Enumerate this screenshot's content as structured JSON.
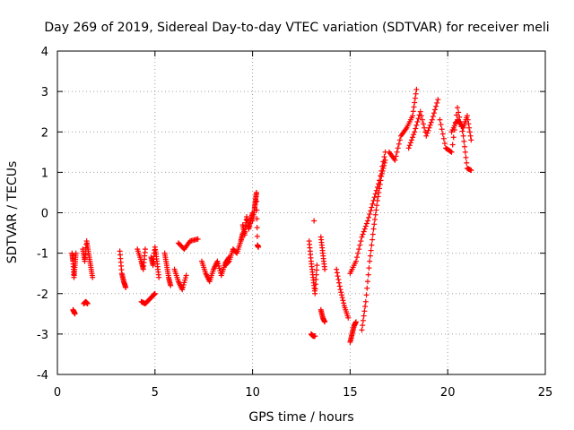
{
  "chart_data": {
    "type": "scatter",
    "title": "Day 269 of 2019, Sidereal Day-to-day VTEC variation (SDTVAR) for receiver meli",
    "xlabel": "GPS time / hours",
    "ylabel": "SDTVAR / TECUs",
    "xlim": [
      0,
      25
    ],
    "ylim": [
      -4,
      4
    ],
    "xticks": [
      0,
      5,
      10,
      15,
      20,
      25
    ],
    "yticks": [
      -4,
      -3,
      -2,
      -1,
      0,
      1,
      2,
      3,
      4
    ],
    "grid": true,
    "marker": "+",
    "color": "#ff0000",
    "series": [
      {
        "name": "SDTVAR",
        "segments": [
          {
            "x": [
              0.75,
              0.8,
              0.85,
              0.9,
              0.95
            ],
            "y": [
              -1.0,
              -1.2,
              -1.6,
              -1.3,
              -1.0
            ]
          },
          {
            "x": [
              0.8,
              0.85,
              0.9
            ],
            "y": [
              -2.4,
              -2.45,
              -2.5
            ]
          },
          {
            "x": [
              1.3,
              1.4,
              1.5,
              1.6,
              1.7,
              1.8
            ],
            "y": [
              -0.9,
              -1.2,
              -0.7,
              -1.0,
              -1.3,
              -1.6
            ]
          },
          {
            "x": [
              1.35,
              1.45,
              1.55
            ],
            "y": [
              -2.25,
              -2.2,
              -2.25
            ]
          },
          {
            "x": [
              3.2,
              3.3,
              3.4,
              3.5
            ],
            "y": [
              -0.95,
              -1.5,
              -1.7,
              -1.85
            ]
          },
          {
            "x": [
              4.1,
              4.3,
              4.4,
              4.5
            ],
            "y": [
              -0.9,
              -1.2,
              -1.4,
              -0.9
            ]
          },
          {
            "x": [
              4.3,
              4.5,
              4.7,
              4.9,
              5.0
            ],
            "y": [
              -2.2,
              -2.25,
              -2.15,
              -2.05,
              -2.0
            ]
          },
          {
            "x": [
              4.8,
              4.9,
              5.0,
              5.1,
              5.2
            ],
            "y": [
              -1.1,
              -1.3,
              -0.85,
              -1.2,
              -1.6
            ]
          },
          {
            "x": [
              5.5,
              5.6,
              5.7,
              5.8
            ],
            "y": [
              -1.0,
              -1.3,
              -1.6,
              -1.8
            ]
          },
          {
            "x": [
              6.0,
              6.2,
              6.4,
              6.6
            ],
            "y": [
              -1.4,
              -1.7,
              -1.9,
              -1.55
            ]
          },
          {
            "x": [
              6.2,
              6.5,
              6.8,
              7.2
            ],
            "y": [
              -0.75,
              -0.9,
              -0.7,
              -0.65
            ]
          },
          {
            "x": [
              7.4,
              7.6,
              7.8,
              8.0,
              8.2,
              8.4,
              8.6,
              8.8
            ],
            "y": [
              -1.2,
              -1.5,
              -1.7,
              -1.4,
              -1.2,
              -1.55,
              -1.25,
              -1.1
            ]
          },
          {
            "x": [
              8.6,
              8.8,
              9.0,
              9.2,
              9.4,
              9.5
            ],
            "y": [
              -1.3,
              -1.2,
              -0.9,
              -1.0,
              -0.7,
              -0.5
            ]
          },
          {
            "x": [
              9.5,
              9.6,
              9.7,
              9.8,
              9.9,
              10.0
            ],
            "y": [
              -0.3,
              -0.55,
              -0.1,
              -0.4,
              -0.2,
              0.0
            ]
          },
          {
            "x": [
              10.0,
              10.1,
              10.15,
              10.2,
              10.25,
              10.3
            ],
            "y": [
              -0.2,
              0.1,
              0.3,
              0.5,
              -0.8,
              -0.85
            ]
          },
          {
            "x": [
              12.9,
              13.0,
              13.1,
              13.2,
              13.3
            ],
            "y": [
              -0.7,
              -1.2,
              -1.6,
              -2.0,
              -1.3
            ]
          },
          {
            "x": [
              13.15
            ],
            "y": [
              -0.2
            ]
          },
          {
            "x": [
              13.0,
              13.1,
              13.2
            ],
            "y": [
              -3.0,
              -3.05,
              -3.05
            ]
          },
          {
            "x": [
              13.5,
              13.6,
              13.7
            ],
            "y": [
              -0.6,
              -1.0,
              -1.4
            ]
          },
          {
            "x": [
              13.5,
              13.6,
              13.7
            ],
            "y": [
              -2.4,
              -2.6,
              -2.7
            ]
          },
          {
            "x": [
              14.3,
              14.5,
              14.7,
              14.9
            ],
            "y": [
              -1.4,
              -1.9,
              -2.3,
              -2.6
            ]
          },
          {
            "x": [
              15.0,
              15.1,
              15.2,
              15.3
            ],
            "y": [
              -3.2,
              -3.0,
              -2.8,
              -2.7
            ]
          },
          {
            "x": [
              15.0,
              15.3,
              15.6,
              15.9,
              16.2,
              16.5,
              16.8
            ],
            "y": [
              -1.5,
              -1.2,
              -0.6,
              -0.2,
              0.3,
              0.8,
              1.5
            ]
          },
          {
            "x": [
              15.6,
              15.8,
              16.0,
              16.2,
              16.4,
              16.6,
              16.8
            ],
            "y": [
              -2.9,
              -2.2,
              -1.2,
              -0.4,
              0.3,
              0.9,
              1.3
            ]
          },
          {
            "x": [
              17.0,
              17.3,
              17.6,
              17.9,
              18.2,
              18.4
            ],
            "y": [
              1.5,
              1.3,
              1.9,
              2.1,
              2.4,
              3.05
            ]
          },
          {
            "x": [
              18.0,
              18.3,
              18.6,
              18.9,
              19.2,
              19.5
            ],
            "y": [
              1.6,
              2.0,
              2.5,
              1.9,
              2.3,
              2.8
            ]
          },
          {
            "x": [
              19.6,
              19.9,
              20.2,
              20.5,
              20.8,
              21.0,
              21.2
            ],
            "y": [
              2.3,
              1.6,
              1.5,
              2.6,
              1.9,
              1.1,
              1.05
            ]
          },
          {
            "x": [
              20.2,
              20.5,
              20.8,
              21.0,
              21.2
            ],
            "y": [
              2.0,
              2.3,
              2.1,
              2.4,
              1.8
            ]
          }
        ]
      }
    ]
  }
}
